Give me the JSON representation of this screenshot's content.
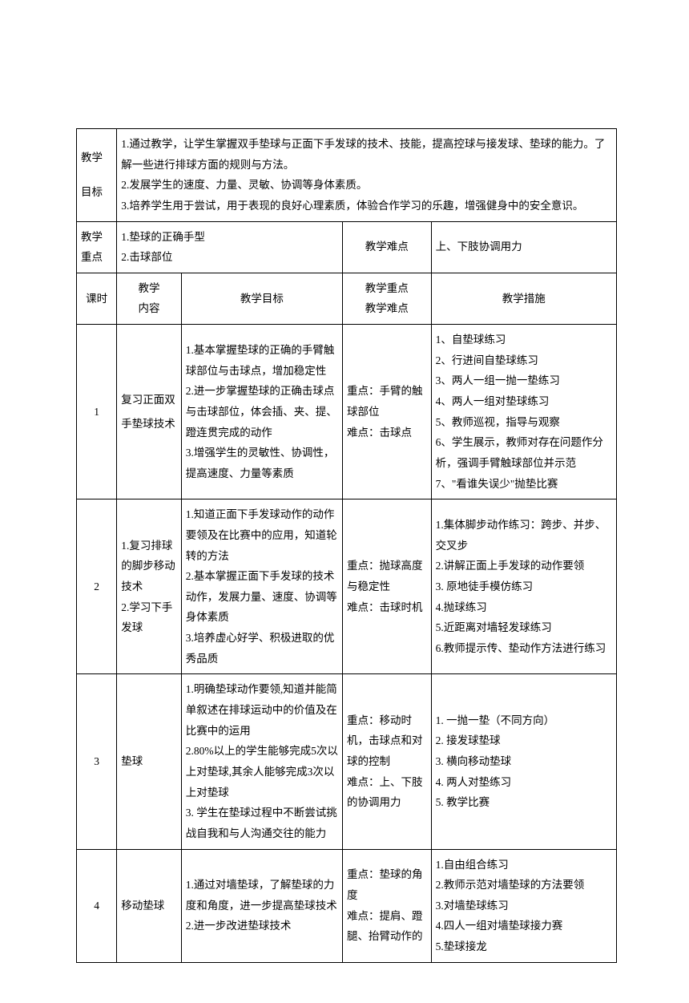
{
  "teachingGoals": {
    "label": "教学\n\n目标",
    "text": "1.通过教学，让学生掌握双手垫球与正面下手发球的技术、技能，提高控球与接发球、垫球的能力。了解一些进行排球方面的规则与方法。\n2.发展学生的速度、力量、灵敏、协调等身体素质。\n3.培养学生用于尝试，用于表现的良好心理素质，体验合作学习的乐趣，增强健身中的安全意识。"
  },
  "teachingFocus": {
    "label": "教学\n重点",
    "text": "1.垫球的正确手型\n2.击球部位"
  },
  "teachingDifficulty": {
    "label": "教学难点",
    "text": "上、下肢协调用力"
  },
  "headers": {
    "lesson": "课时",
    "content": "教学\n内容",
    "goals": "教学目标",
    "points": "教学重点\n教学难点",
    "measures": "教学措施"
  },
  "rows": [
    {
      "lesson": "1",
      "content": "复习正面双手垫球技术",
      "goals": "1.基本掌握垫球的正确的手臂触球部位与击球点，增加稳定性\n2.进一步掌握垫球的正确击球点与击球部位，体会插、夹、提、蹬连贯完成的动作\n3.增强学生的灵敏性、协调性，提高速度、力量等素质",
      "points": "重点：手臂的触球部位\n难点：击球点",
      "measures": "1、自垫球练习\n2、行进间自垫球练习\n3、两人一组一抛一垫练习\n4、两人一组对垫球练习\n5、教师巡视，指导与观察\n6、学生展示，教师对存在问题作分析，强调手臂触球部位并示范\n7、\"看谁失误少\"抛垫比赛"
    },
    {
      "lesson": "2",
      "content": "1.复习排球的脚步移动技术\n2.学习下手发球",
      "goals": "1.知道正面下手发球动作的动作要领及在比赛中的应用，知道轮转的方法\n2.基本掌握正面下手发球的技术动作，发展力量、速度、协调等身体素质\n3.培养虚心好学、积极进取的优秀品质",
      "points": "重点：抛球高度与稳定性\n难点：击球时机",
      "measures": "1.集体脚步动作练习：跨步、并步、交叉步\n2.讲解正面上手发球的动作要领\n3. 原地徒手模仿练习\n4.抛球练习\n5.近距离对墙轻发球练习\n6.教师提示传、垫动作方法进行练习"
    },
    {
      "lesson": "3",
      "content": "垫球",
      "goals": "1.明确垫球动作要领,知道并能简单叙述在排球运动中的价值及在比赛中的运用\n2.80%以上的学生能够完成5次以上对垫球,其余人能够完成3次以上对垫球\n3. 学生在垫球过程中不断尝试挑战自我和与人沟通交往的能力",
      "points": "重点：移动时机，击球点和对球的控制\n难点：上、下肢的协调用力",
      "measures": "1. 一抛一垫（不同方向）\n2. 接发球垫球\n3. 横向移动垫球\n4. 两人对垫练习\n5. 教学比赛"
    },
    {
      "lesson": "4",
      "content": "移动垫球",
      "goals": "1.通过对墙垫球，了解垫球的力度和角度，进一步提高垫球技术\n2.进一步改进垫球技术",
      "points": "重点：垫球的角度\n难点：提肩、蹬腿、抬臂动作的",
      "measures": "1.自由组合练习\n2.教师示范对墙垫球的方法要领\n3.对墙垫球练习\n4.四人一组对墙垫球接力赛\n5.垫球接龙"
    }
  ]
}
